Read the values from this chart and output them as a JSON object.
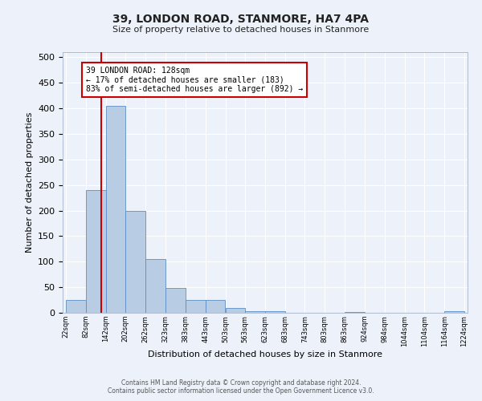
{
  "title": "39, LONDON ROAD, STANMORE, HA7 4PA",
  "subtitle": "Size of property relative to detached houses in Stanmore",
  "xlabel": "Distribution of detached houses by size in Stanmore",
  "ylabel": "Number of detached properties",
  "bar_color": "#b8cce4",
  "bar_edge_color": "#5b8ec4",
  "background_color": "#edf2fa",
  "grid_color": "#ffffff",
  "annotation_box_color": "#ffffff",
  "annotation_border_color": "#cc0000",
  "property_line_color": "#cc0000",
  "bin_edges": [
    22,
    82,
    142,
    202,
    262,
    323,
    383,
    443,
    503,
    563,
    623,
    683,
    743,
    803,
    863,
    924,
    984,
    1044,
    1104,
    1164,
    1224
  ],
  "bar_heights": [
    25,
    240,
    405,
    200,
    105,
    48,
    25,
    25,
    10,
    3,
    3,
    0,
    0,
    0,
    2,
    0,
    0,
    0,
    0,
    3
  ],
  "property_size": 128,
  "annotation_title": "39 LONDON ROAD: 128sqm",
  "annotation_line1": "← 17% of detached houses are smaller (183)",
  "annotation_line2": "83% of semi-detached houses are larger (892) →",
  "ylim": [
    0,
    510
  ],
  "yticks": [
    0,
    50,
    100,
    150,
    200,
    250,
    300,
    350,
    400,
    450,
    500
  ],
  "footer_line1": "Contains HM Land Registry data © Crown copyright and database right 2024.",
  "footer_line2": "Contains public sector information licensed under the Open Government Licence v3.0."
}
